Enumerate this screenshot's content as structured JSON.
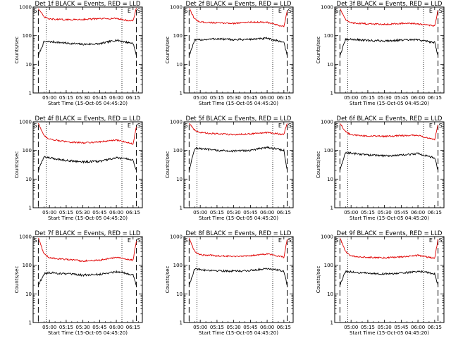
{
  "colors": {
    "events": "#000000",
    "lld": "#e00000",
    "axes": "#000000",
    "background": "#ffffff"
  },
  "chart_data": [
    {
      "type": "line",
      "title": "Det 1f BLACK = Events, RED = LLD",
      "xlabel": "Start Time (15-Oct-05 04:45:20)",
      "ylabel": "Counts/sec",
      "y_scale": "log",
      "ylim": [
        1,
        1000
      ],
      "y_ticks": [
        "1",
        "10",
        "100",
        "1000"
      ],
      "xlim": [
        "04:45:20",
        "06:23:20"
      ],
      "x_ticks": [
        "05:00",
        "05:15",
        "05:30",
        "05:45",
        "06:00",
        "06:15"
      ],
      "grid": false,
      "legend": "none",
      "flags": [
        "S",
        "E",
        "S"
      ],
      "series": [
        {
          "name": "Events",
          "color": "#000000",
          "x": [
            "04:50",
            "04:55",
            "05:00",
            "05:15",
            "05:30",
            "05:45",
            "06:00",
            "06:10",
            "06:15",
            "06:18"
          ],
          "y": [
            20,
            60,
            62,
            55,
            50,
            52,
            70,
            58,
            55,
            20
          ]
        },
        {
          "name": "LLD",
          "color": "#e00000",
          "x": [
            "04:50",
            "04:55",
            "05:00",
            "05:15",
            "05:30",
            "05:45",
            "06:00",
            "06:10",
            "06:15",
            "06:18"
          ],
          "y": [
            900,
            450,
            380,
            360,
            370,
            390,
            400,
            340,
            330,
            900
          ]
        }
      ]
    },
    {
      "type": "line",
      "title": "Det 2f BLACK = Events, RED = LLD",
      "xlabel": "Start Time (15-Oct-05 04:45:20)",
      "ylabel": "Counts/sec",
      "y_scale": "log",
      "ylim": [
        1,
        1000
      ],
      "y_ticks": [
        "1",
        "10",
        "100",
        "1000"
      ],
      "xlim": [
        "04:45:20",
        "06:23:20"
      ],
      "x_ticks": [
        "05:00",
        "05:15",
        "05:30",
        "05:45",
        "06:00",
        "06:15"
      ],
      "grid": false,
      "legend": "none",
      "flags": [
        "S",
        "E",
        "S"
      ],
      "series": [
        {
          "name": "Events",
          "color": "#000000",
          "x": [
            "04:50",
            "04:55",
            "05:00",
            "05:15",
            "05:30",
            "05:45",
            "06:00",
            "06:10",
            "06:15",
            "06:18"
          ],
          "y": [
            20,
            70,
            72,
            78,
            72,
            75,
            80,
            65,
            60,
            20
          ]
        },
        {
          "name": "LLD",
          "color": "#e00000",
          "x": [
            "04:50",
            "04:55",
            "05:00",
            "05:15",
            "05:30",
            "05:45",
            "06:00",
            "06:10",
            "06:15",
            "06:18"
          ],
          "y": [
            900,
            380,
            300,
            280,
            270,
            300,
            290,
            230,
            210,
            700
          ]
        }
      ]
    },
    {
      "type": "line",
      "title": "Det 3f BLACK = Events, RED = LLD",
      "xlabel": "Start Time (15-Oct-05 04:45:20)",
      "ylabel": "Counts/sec",
      "y_scale": "log",
      "ylim": [
        1,
        1000
      ],
      "y_ticks": [
        "1",
        "10",
        "100",
        "1000"
      ],
      "xlim": [
        "04:45:20",
        "06:23:20"
      ],
      "x_ticks": [
        "05:00",
        "05:15",
        "05:30",
        "05:45",
        "06:00",
        "06:15"
      ],
      "grid": false,
      "legend": "none",
      "flags": [
        "S",
        "E",
        "S"
      ],
      "series": [
        {
          "name": "Events",
          "color": "#000000",
          "x": [
            "04:50",
            "04:55",
            "05:00",
            "05:15",
            "05:30",
            "05:45",
            "06:00",
            "06:10",
            "06:15",
            "06:18"
          ],
          "y": [
            20,
            72,
            75,
            68,
            66,
            70,
            72,
            62,
            58,
            20
          ]
        },
        {
          "name": "LLD",
          "color": "#e00000",
          "x": [
            "04:50",
            "04:55",
            "05:00",
            "05:15",
            "05:30",
            "05:45",
            "06:00",
            "06:10",
            "06:15",
            "06:18"
          ],
          "y": [
            900,
            360,
            280,
            260,
            250,
            270,
            260,
            230,
            215,
            800
          ]
        }
      ]
    },
    {
      "type": "line",
      "title": "Det 4f BLACK = Events, RED = LLD",
      "xlabel": "Start Time (15-Oct-05 04:45:20)",
      "ylabel": "Counts/sec",
      "y_scale": "log",
      "ylim": [
        1,
        1000
      ],
      "y_ticks": [
        "1",
        "10",
        "100",
        "1000"
      ],
      "xlim": [
        "04:45:20",
        "06:23:20"
      ],
      "x_ticks": [
        "05:00",
        "05:15",
        "05:30",
        "05:45",
        "06:00",
        "06:15"
      ],
      "grid": false,
      "legend": "none",
      "flags": [
        "S",
        "E",
        "S"
      ],
      "series": [
        {
          "name": "Events",
          "color": "#000000",
          "x": [
            "04:50",
            "04:55",
            "05:00",
            "05:15",
            "05:30",
            "05:45",
            "06:00",
            "06:10",
            "06:15",
            "06:18"
          ],
          "y": [
            20,
            60,
            55,
            45,
            40,
            42,
            55,
            50,
            45,
            20
          ]
        },
        {
          "name": "LLD",
          "color": "#e00000",
          "x": [
            "04:50",
            "04:55",
            "05:00",
            "05:15",
            "05:30",
            "05:45",
            "06:00",
            "06:10",
            "06:15",
            "06:18"
          ],
          "y": [
            900,
            330,
            250,
            200,
            185,
            200,
            230,
            190,
            170,
            700
          ]
        }
      ]
    },
    {
      "type": "line",
      "title": "Det 5f BLACK = Events, RED = LLD",
      "xlabel": "Start Time (15-Oct-05 04:45:20)",
      "ylabel": "Counts/sec",
      "y_scale": "log",
      "ylim": [
        1,
        1000
      ],
      "y_ticks": [
        "1",
        "10",
        "100",
        "1000"
      ],
      "xlim": [
        "04:45:20",
        "06:23:20"
      ],
      "x_ticks": [
        "05:00",
        "05:15",
        "05:30",
        "05:45",
        "06:00",
        "06:15"
      ],
      "grid": false,
      "legend": "none",
      "flags": [
        "S",
        "E",
        "S"
      ],
      "series": [
        {
          "name": "Events",
          "color": "#000000",
          "x": [
            "04:50",
            "04:55",
            "05:00",
            "05:15",
            "05:30",
            "05:45",
            "06:00",
            "06:10",
            "06:15",
            "06:18"
          ],
          "y": [
            20,
            120,
            115,
            100,
            95,
            100,
            130,
            110,
            100,
            20
          ]
        },
        {
          "name": "LLD",
          "color": "#e00000",
          "x": [
            "04:50",
            "04:55",
            "05:00",
            "05:15",
            "05:30",
            "05:45",
            "06:00",
            "06:10",
            "06:15",
            "06:18"
          ],
          "y": [
            900,
            520,
            420,
            380,
            360,
            380,
            420,
            380,
            360,
            900
          ]
        }
      ]
    },
    {
      "type": "line",
      "title": "Det 6f BLACK = Events, RED = LLD",
      "xlabel": "Start Time (15-Oct-05 04:45:20)",
      "ylabel": "Counts/sec",
      "y_scale": "log",
      "ylim": [
        1,
        1000
      ],
      "y_ticks": [
        "1",
        "10",
        "100",
        "1000"
      ],
      "xlim": [
        "04:45:20",
        "06:23:20"
      ],
      "x_ticks": [
        "05:00",
        "05:15",
        "05:30",
        "05:45",
        "06:00",
        "06:15"
      ],
      "grid": false,
      "legend": "none",
      "flags": [
        "S",
        "E",
        "S"
      ],
      "series": [
        {
          "name": "Events",
          "color": "#000000",
          "x": [
            "04:50",
            "04:55",
            "05:00",
            "05:15",
            "05:30",
            "05:45",
            "06:00",
            "06:10",
            "06:15",
            "06:18"
          ],
          "y": [
            20,
            85,
            80,
            70,
            65,
            68,
            78,
            62,
            55,
            20
          ]
        },
        {
          "name": "LLD",
          "color": "#e00000",
          "x": [
            "04:50",
            "04:55",
            "05:00",
            "05:15",
            "05:30",
            "05:45",
            "06:00",
            "06:10",
            "06:15",
            "06:18"
          ],
          "y": [
            900,
            450,
            350,
            320,
            310,
            330,
            340,
            260,
            240,
            800
          ]
        }
      ]
    },
    {
      "type": "line",
      "title": "Det 7f BLACK = Events, RED = LLD",
      "xlabel": "Start Time (15-Oct-05 04:45:20)",
      "ylabel": "Counts/sec",
      "y_scale": "log",
      "ylim": [
        1,
        1000
      ],
      "y_ticks": [
        "1",
        "10",
        "100",
        "1000"
      ],
      "xlim": [
        "04:45:20",
        "06:23:20"
      ],
      "x_ticks": [
        "05:00",
        "05:15",
        "05:30",
        "05:45",
        "06:00",
        "06:15"
      ],
      "grid": false,
      "legend": "none",
      "flags": [
        "S",
        "E",
        "S"
      ],
      "series": [
        {
          "name": "Events",
          "color": "#000000",
          "x": [
            "04:50",
            "04:55",
            "05:00",
            "05:15",
            "05:30",
            "05:45",
            "06:00",
            "06:10",
            "06:15",
            "06:18"
          ],
          "y": [
            20,
            50,
            55,
            50,
            45,
            48,
            60,
            52,
            45,
            20
          ]
        },
        {
          "name": "LLD",
          "color": "#e00000",
          "x": [
            "04:50",
            "04:55",
            "05:00",
            "05:15",
            "05:30",
            "05:45",
            "06:00",
            "06:10",
            "06:15",
            "06:18"
          ],
          "y": [
            900,
            250,
            180,
            160,
            140,
            150,
            190,
            160,
            150,
            700
          ]
        }
      ]
    },
    {
      "type": "line",
      "title": "Det 8f BLACK = Events, RED = LLD",
      "xlabel": "Start Time (15-Oct-05 04:45:20)",
      "ylabel": "Counts/sec",
      "y_scale": "log",
      "ylim": [
        1,
        1000
      ],
      "y_ticks": [
        "1",
        "10",
        "100",
        "1000"
      ],
      "xlim": [
        "04:45:20",
        "06:23:20"
      ],
      "x_ticks": [
        "05:00",
        "05:15",
        "05:30",
        "05:45",
        "06:00",
        "06:15"
      ],
      "grid": false,
      "legend": "none",
      "flags": [
        "S",
        "E",
        "S"
      ],
      "series": [
        {
          "name": "Events",
          "color": "#000000",
          "x": [
            "04:50",
            "04:55",
            "05:00",
            "05:15",
            "05:30",
            "05:45",
            "06:00",
            "06:10",
            "06:15",
            "06:18"
          ],
          "y": [
            20,
            75,
            70,
            65,
            62,
            65,
            78,
            68,
            60,
            20
          ]
        },
        {
          "name": "LLD",
          "color": "#e00000",
          "x": [
            "04:50",
            "04:55",
            "05:00",
            "05:15",
            "05:30",
            "05:45",
            "06:00",
            "06:10",
            "06:15",
            "06:18"
          ],
          "y": [
            900,
            300,
            230,
            215,
            205,
            215,
            250,
            210,
            190,
            800
          ]
        }
      ]
    },
    {
      "type": "line",
      "title": "Det 9f BLACK = Events, RED = LLD",
      "xlabel": "Start Time (15-Oct-05 04:45:20)",
      "ylabel": "Counts/sec",
      "y_scale": "log",
      "ylim": [
        1,
        1000
      ],
      "y_ticks": [
        "1",
        "10",
        "100",
        "1000"
      ],
      "xlim": [
        "04:45:20",
        "06:23:20"
      ],
      "x_ticks": [
        "05:00",
        "05:15",
        "05:30",
        "05:45",
        "06:00",
        "06:15"
      ],
      "grid": false,
      "legend": "none",
      "flags": [
        "S",
        "E",
        "S"
      ],
      "series": [
        {
          "name": "Events",
          "color": "#000000",
          "x": [
            "04:50",
            "04:55",
            "05:00",
            "05:15",
            "05:30",
            "05:45",
            "06:00",
            "06:10",
            "06:15",
            "06:18"
          ],
          "y": [
            20,
            60,
            58,
            52,
            50,
            52,
            62,
            55,
            50,
            20
          ]
        },
        {
          "name": "LLD",
          "color": "#e00000",
          "x": [
            "04:50",
            "04:55",
            "05:00",
            "05:15",
            "05:30",
            "05:45",
            "06:00",
            "06:10",
            "06:15",
            "06:18"
          ],
          "y": [
            900,
            300,
            210,
            190,
            180,
            195,
            220,
            190,
            175,
            800
          ]
        }
      ]
    }
  ]
}
